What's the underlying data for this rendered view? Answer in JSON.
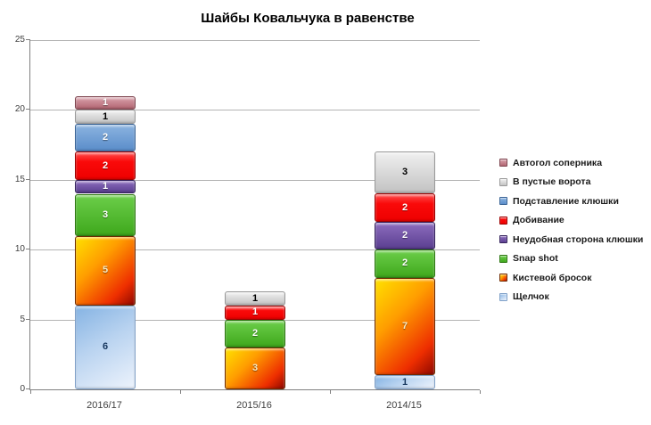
{
  "chart_data": {
    "type": "bar",
    "stacked": true,
    "title": "Шайбы Ковальчука в равенстве",
    "categories": [
      "2016/17",
      "2015/16",
      "2014/15"
    ],
    "series": [
      {
        "name": "Щелчок",
        "values": [
          6,
          0,
          1
        ],
        "color": "#A9CCEE",
        "gradient": {
          "angle": 150,
          "stops": [
            "#85B3E3",
            "#B9D3F0 45%",
            "#EDF3FC"
          ]
        },
        "border": "#7FA0C8",
        "label_color": "#17375E"
      },
      {
        "name": "Кистевой бросок",
        "values": [
          5,
          3,
          7
        ],
        "color": "#FF9D00",
        "gradient": {
          "angle": 135,
          "stops": [
            "#FFE100",
            "#FF9D00 38%",
            "#EE2E00 78%",
            "#8F0800"
          ]
        },
        "border": "#6E2A00",
        "label_color": "#F5E9C2"
      },
      {
        "name": "Snap shot",
        "values": [
          3,
          2,
          2
        ],
        "color": "#4CB52A",
        "gradient": {
          "angle": 180,
          "stops": [
            "#6CCE4A",
            "#3FA81C"
          ]
        },
        "border": "#2C7611",
        "label_color": "#FFFFFF"
      },
      {
        "name": "Неудобная сторона клюшки",
        "values": [
          1,
          0,
          2
        ],
        "color": "#6B4E9E",
        "gradient": {
          "angle": 180,
          "stops": [
            "#8D6DBE",
            "#5B3F91"
          ]
        },
        "border": "#35235C",
        "label_color": "#FFFFFF"
      },
      {
        "name": "Добивание",
        "values": [
          2,
          1,
          2
        ],
        "color": "#F90A0A",
        "gradient": {
          "angle": 180,
          "stops": [
            "#FF5050",
            "#FA0A0A 35%",
            "#EE0000"
          ]
        },
        "border": "#9C0000",
        "label_color": "#FFFFFF"
      },
      {
        "name": "Подставление клюшки",
        "values": [
          2,
          0,
          0
        ],
        "color": "#6496CE",
        "gradient": {
          "angle": 180,
          "stops": [
            "#8CB4E0",
            "#5A8DCA"
          ]
        },
        "border": "#3A6496",
        "label_color": "#FFFFFF"
      },
      {
        "name": "В пустые ворота",
        "values": [
          1,
          1,
          3
        ],
        "color": "#C8C8C8",
        "gradient": {
          "angle": 180,
          "stops": [
            "#F0F0F0",
            "#C3C3C3"
          ]
        },
        "border": "#989898",
        "label_color": "#000000"
      },
      {
        "name": "Автогол соперника",
        "values": [
          1,
          0,
          0
        ],
        "color": "#C27D89",
        "gradient": {
          "angle": 180,
          "stops": [
            "#D9A2AC",
            "#B36672"
          ]
        },
        "border": "#7C434D",
        "label_color": "#FFFFFF"
      }
    ],
    "ylim": [
      0,
      25
    ],
    "yticks": [
      0,
      5,
      10,
      15,
      20,
      25
    ],
    "grid": true,
    "legend_position": "right",
    "legend_order": "top-of-stack-first"
  }
}
